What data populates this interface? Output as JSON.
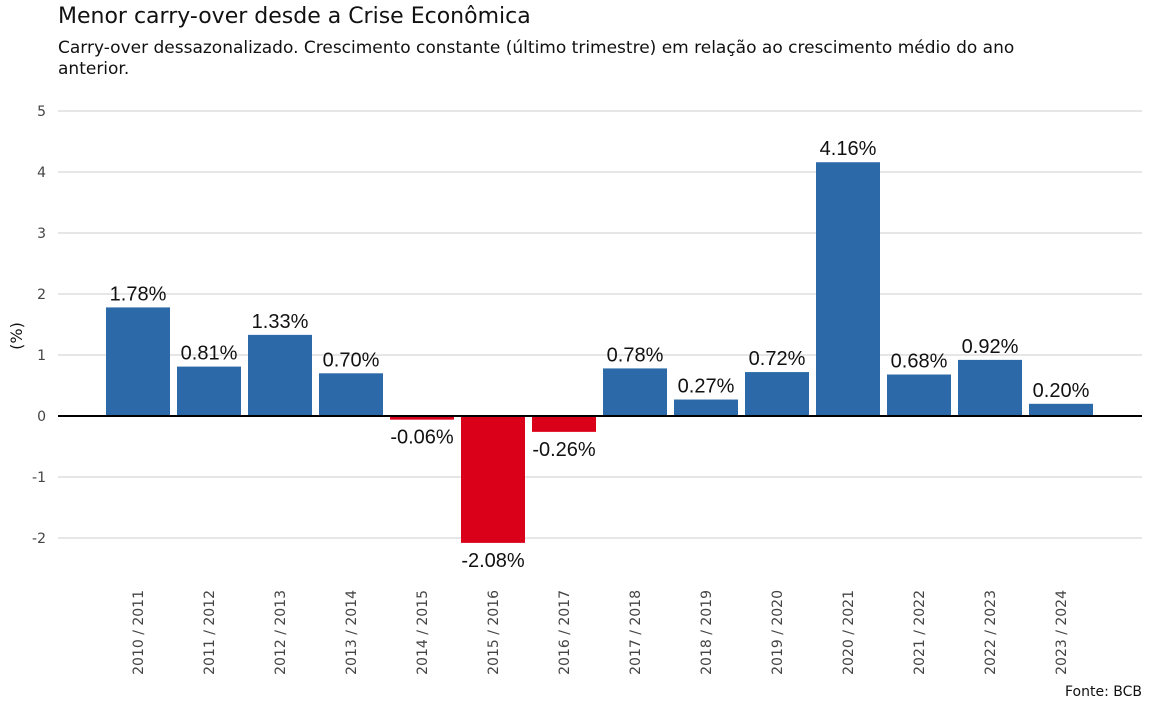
{
  "chart_data": {
    "type": "bar",
    "title": "Menor carry-over desde a Crise Econômica",
    "subtitle": "Carry-over dessazonalizado. Crescimento constante (último trimestre) em relação ao crescimento médio do ano anterior.",
    "ylabel": "(%)",
    "xlabel": "",
    "ylim": [
      -2.5,
      5
    ],
    "yticks": [
      -2,
      -1,
      0,
      1,
      2,
      3,
      4,
      5
    ],
    "grid": true,
    "categories": [
      "2010 / 2011",
      "2011 / 2012",
      "2012 / 2013",
      "2013 / 2014",
      "2014 / 2015",
      "2015 / 2016",
      "2016 / 2017",
      "2017 / 2018",
      "2018 / 2019",
      "2019 / 2020",
      "2020 / 2021",
      "2021 / 2022",
      "2022 / 2023",
      "2023 / 2024"
    ],
    "values": [
      1.78,
      0.81,
      1.33,
      0.7,
      -0.06,
      -2.08,
      -0.26,
      0.78,
      0.27,
      0.72,
      4.16,
      0.68,
      0.92,
      0.2
    ],
    "value_labels": [
      "1.78%",
      "0.81%",
      "1.33%",
      "0.70%",
      "-0.06%",
      "-2.08%",
      "-0.26%",
      "0.78%",
      "0.27%",
      "0.72%",
      "4.16%",
      "0.68%",
      "0.92%",
      "0.20%"
    ],
    "colors": {
      "positive": "#2C69A8",
      "negative": "#DA001A",
      "grid": "#DDDDDD",
      "zero_line": "#000000"
    },
    "source": "Fonte: BCB"
  }
}
